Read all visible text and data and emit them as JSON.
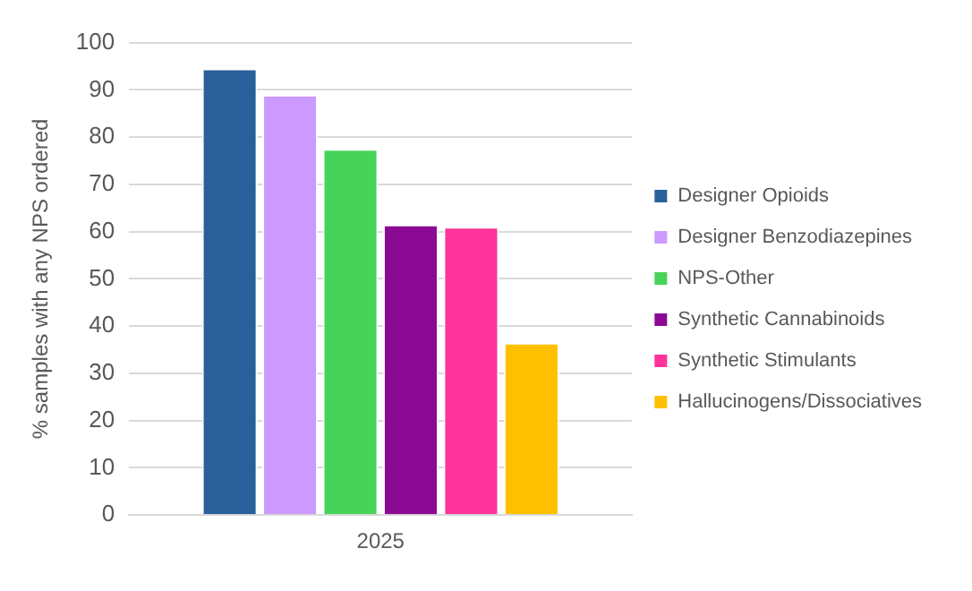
{
  "chart_data": {
    "type": "bar",
    "ylabel": "% samples with any NPS ordered",
    "categories": [
      "2025"
    ],
    "series": [
      {
        "name": "Designer Opioids",
        "color": "#2a6099",
        "values": [
          94.5
        ]
      },
      {
        "name": "Designer Benzodiazepines",
        "color": "#cc99ff",
        "values": [
          89
        ]
      },
      {
        "name": "NPS-Other",
        "color": "#47d35a",
        "values": [
          77.5
        ]
      },
      {
        "name": "Synthetic Cannabinoids",
        "color": "#8b0a94",
        "values": [
          61.5
        ]
      },
      {
        "name": "Synthetic Stimulants",
        "color": "#ff3399",
        "values": [
          61
        ]
      },
      {
        "name": "Hallucinogens/Dissociatives",
        "color": "#ffc000",
        "values": [
          36.5
        ]
      }
    ],
    "ylim": [
      0,
      100
    ],
    "yticks": [
      0,
      10,
      20,
      30,
      40,
      50,
      60,
      70,
      80,
      90,
      100
    ],
    "grid": "y",
    "legend": "right"
  }
}
